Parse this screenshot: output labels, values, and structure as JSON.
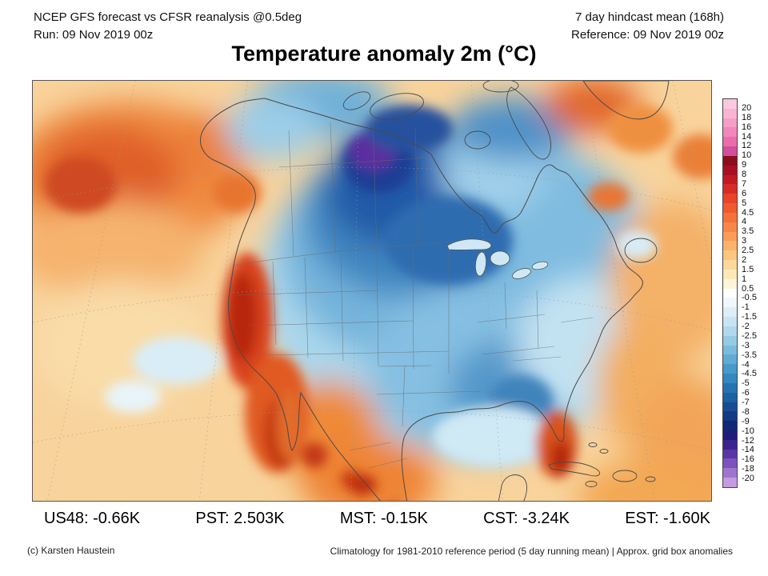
{
  "header": {
    "model_line": "NCEP GFS forecast vs CFSR reanalysis @0.5deg",
    "run_line": "Run: 09 Nov 2019 00z",
    "hindcast_line": "7 day hindcast mean (168h)",
    "reference_line": "Reference: 09 Nov 2019 00z",
    "title": "Temperature anomaly 2m (°C)"
  },
  "colorbar": {
    "labels": [
      "20",
      "18",
      "16",
      "14",
      "12",
      "10",
      "9",
      "8",
      "7",
      "6",
      "5",
      "4.5",
      "4",
      "3.5",
      "3",
      "2.5",
      "2",
      "1.5",
      "1",
      "0.5",
      "-0.5",
      "-1",
      "-1.5",
      "-2",
      "-2.5",
      "-3",
      "-3.5",
      "-4",
      "-4.5",
      "-5",
      "-6",
      "-7",
      "-8",
      "-9",
      "-10",
      "-12",
      "-14",
      "-16",
      "-18",
      "-20"
    ],
    "colors": [
      "#fac9de",
      "#f8b4d3",
      "#f59ec7",
      "#f287ba",
      "#ea6cac",
      "#d14f9b",
      "#8b0e1e",
      "#a81022",
      "#c21a24",
      "#d92b26",
      "#e8442b",
      "#ef5a31",
      "#f4713a",
      "#f78748",
      "#fa9d58",
      "#fbb26b",
      "#fcc681",
      "#fdd89a",
      "#fee8b7",
      "#fff5d8",
      "#ffffff",
      "#f0f8fb",
      "#ddeef7",
      "#c8e4f2",
      "#b0d8ec",
      "#96cbe5",
      "#7bbcdd",
      "#60acd4",
      "#489aca",
      "#3487bf",
      "#2673b2",
      "#1d60a4",
      "#174d95",
      "#123a85",
      "#0e2a74",
      "#1e1d7a",
      "#3a2590",
      "#5936a6",
      "#7c52bc",
      "#9f74ce",
      "#c49ae0"
    ]
  },
  "stats": [
    "US48: -0.66K",
    "PST: 2.503K",
    "MST: -0.15K",
    "CST: -3.24K",
    "EST: -1.60K"
  ],
  "footer": {
    "copyright": "(c) Karsten Haustein",
    "note": "Climatology for 1981-2010 reference period (5 day running mean) | Approx. grid box anomalies"
  }
}
